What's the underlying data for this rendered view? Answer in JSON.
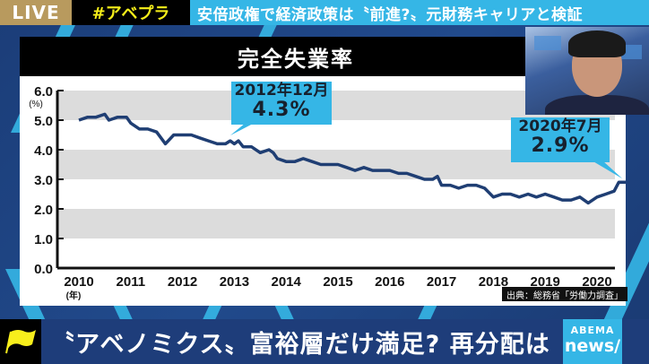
{
  "topbar": {
    "live_label": "LIVE",
    "hashtag": "#アベプラ",
    "headline": "安倍政権で経済政策は〝前進?〟元財務キャリアと検証"
  },
  "chart": {
    "title": "完全失業率",
    "y_unit": "(%)",
    "x_unit": "(年)",
    "source": "出典：総務省「労働力調査」",
    "callouts": [
      {
        "date": "2012年12月",
        "value": "4.3%"
      },
      {
        "date": "2020年7月",
        "value": "2.9%"
      }
    ],
    "colors": {
      "line": "#1f3e73",
      "band": "#dcdcdc",
      "callout": "#35b6e6",
      "title_bg": "#000000"
    }
  },
  "chart_data": {
    "type": "line",
    "title": "完全失業率",
    "xlabel": "(年)",
    "ylabel": "(%)",
    "ylim": [
      0.0,
      6.0
    ],
    "yticks": [
      "0.0",
      "1.0",
      "2.0",
      "3.0",
      "4.0",
      "5.0",
      "6.0"
    ],
    "xticks": [
      "2010",
      "2011",
      "2012",
      "2013",
      "2014",
      "2015",
      "2016",
      "2017",
      "2018",
      "2019",
      "2020"
    ],
    "grid": "alternating horizontal bands",
    "annotations": [
      {
        "x": "2012-12",
        "y": 4.3,
        "text": "2012年12月 4.3%"
      },
      {
        "x": "2020-07",
        "y": 2.9,
        "text": "2020年7月 2.9%"
      }
    ],
    "series": [
      {
        "name": "完全失業率",
        "x": [
          2010.0,
          2010.17,
          2010.33,
          2010.5,
          2010.58,
          2010.75,
          2010.92,
          2011.0,
          2011.17,
          2011.33,
          2011.5,
          2011.67,
          2011.83,
          2011.92,
          2012.0,
          2012.17,
          2012.33,
          2012.5,
          2012.67,
          2012.83,
          2012.92,
          2013.0,
          2013.08,
          2013.17,
          2013.33,
          2013.5,
          2013.67,
          2013.75,
          2013.83,
          2014.0,
          2014.17,
          2014.33,
          2014.5,
          2014.67,
          2014.83,
          2015.0,
          2015.17,
          2015.33,
          2015.5,
          2015.67,
          2015.83,
          2016.0,
          2016.17,
          2016.33,
          2016.5,
          2016.67,
          2016.83,
          2016.92,
          2017.0,
          2017.17,
          2017.33,
          2017.5,
          2017.67,
          2017.83,
          2018.0,
          2018.17,
          2018.33,
          2018.5,
          2018.67,
          2018.83,
          2019.0,
          2019.17,
          2019.33,
          2019.5,
          2019.67,
          2019.83,
          2020.0,
          2020.17,
          2020.33,
          2020.42,
          2020.58
        ],
        "values": [
          5.0,
          5.1,
          5.1,
          5.2,
          5.0,
          5.1,
          5.1,
          4.9,
          4.7,
          4.7,
          4.6,
          4.2,
          4.5,
          4.5,
          4.5,
          4.5,
          4.4,
          4.3,
          4.2,
          4.2,
          4.3,
          4.2,
          4.3,
          4.1,
          4.1,
          3.9,
          4.0,
          3.9,
          3.7,
          3.6,
          3.6,
          3.7,
          3.6,
          3.5,
          3.5,
          3.5,
          3.4,
          3.3,
          3.4,
          3.3,
          3.3,
          3.3,
          3.2,
          3.2,
          3.1,
          3.0,
          3.0,
          3.1,
          2.8,
          2.8,
          2.7,
          2.8,
          2.8,
          2.7,
          2.4,
          2.5,
          2.5,
          2.4,
          2.5,
          2.4,
          2.5,
          2.4,
          2.3,
          2.3,
          2.4,
          2.2,
          2.4,
          2.5,
          2.6,
          2.9,
          2.9
        ]
      }
    ]
  },
  "ticker": {
    "text": "〝アベノミクス〟富裕層だけ満足? 再分配は",
    "logo_top": "ABEMA",
    "logo_bottom": "news/"
  },
  "icons": {
    "flag": "flag-icon"
  }
}
